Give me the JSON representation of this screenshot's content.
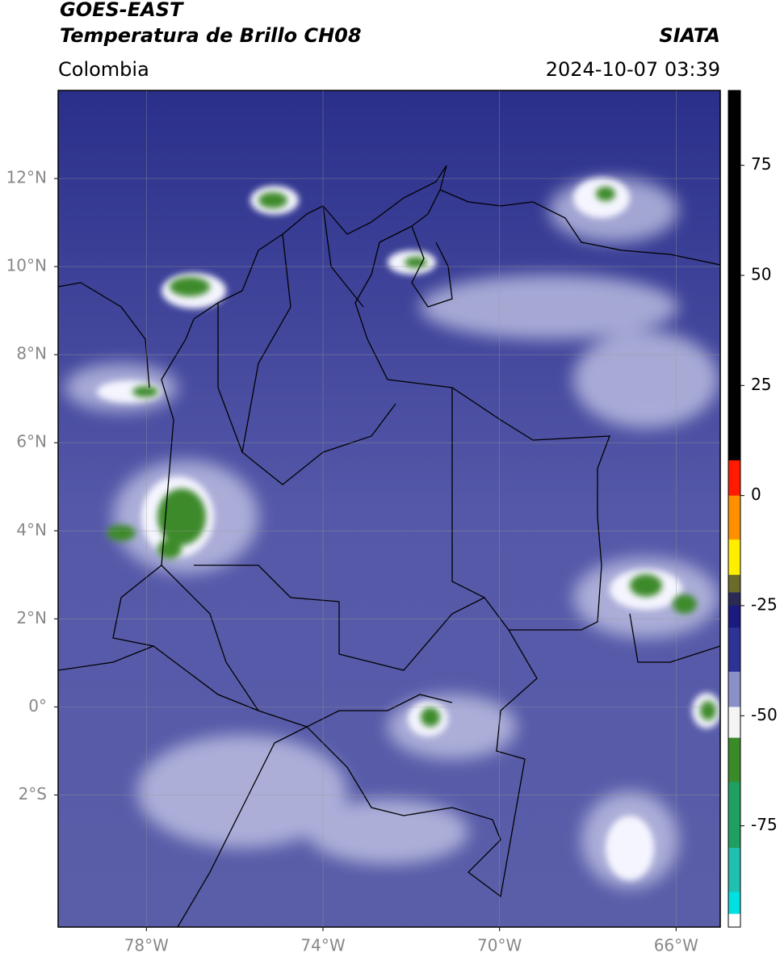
{
  "header": {
    "title_1": "GOES-EAST",
    "title_2": "Temperatura de Brillo CH08",
    "source": "SIATA",
    "region": "Colombia",
    "datetime": "2024-10-07 03:39"
  },
  "map": {
    "xlim": [
      -80,
      -65
    ],
    "ylim": [
      -5,
      14
    ],
    "xticks": [
      {
        "value": -78,
        "label": "78°W"
      },
      {
        "value": -74,
        "label": "74°W"
      },
      {
        "value": -70,
        "label": "70°W"
      },
      {
        "value": -66,
        "label": "66°W"
      }
    ],
    "yticks": [
      {
        "value": 12,
        "label": "12°N"
      },
      {
        "value": 10,
        "label": "10°N"
      },
      {
        "value": 8,
        "label": "8°N"
      },
      {
        "value": 6,
        "label": "6°N"
      },
      {
        "value": 4,
        "label": "4°N"
      },
      {
        "value": 2,
        "label": "2°N"
      },
      {
        "value": 0,
        "label": "0°"
      },
      {
        "value": -2,
        "label": "2°S"
      }
    ],
    "grid": true
  },
  "colorbar": {
    "lim": [
      -98,
      92
    ],
    "ticks": [
      75,
      50,
      25,
      0,
      -25,
      -50,
      -75
    ],
    "stops": [
      {
        "value": 92,
        "color": "#000000"
      },
      {
        "value": 8,
        "color": "#ff1a00"
      },
      {
        "value": 0,
        "color": "#ff9000"
      },
      {
        "value": -10,
        "color": "#ffee00"
      },
      {
        "value": -18,
        "color": "#6b6b2a"
      },
      {
        "value": -22,
        "color": "#2a2a55"
      },
      {
        "value": -25,
        "color": "#1a1a80"
      },
      {
        "value": -30,
        "color": "#2d3296"
      },
      {
        "value": -40,
        "color": "#8a8fc8"
      },
      {
        "value": -48,
        "color": "#f4f4f4"
      },
      {
        "value": -55,
        "color": "#3a8a28"
      },
      {
        "value": -65,
        "color": "#1f9f60"
      },
      {
        "value": -80,
        "color": "#20c0b0"
      },
      {
        "value": -90,
        "color": "#00e0e0"
      },
      {
        "value": -95,
        "color": "#ffffff"
      }
    ]
  }
}
